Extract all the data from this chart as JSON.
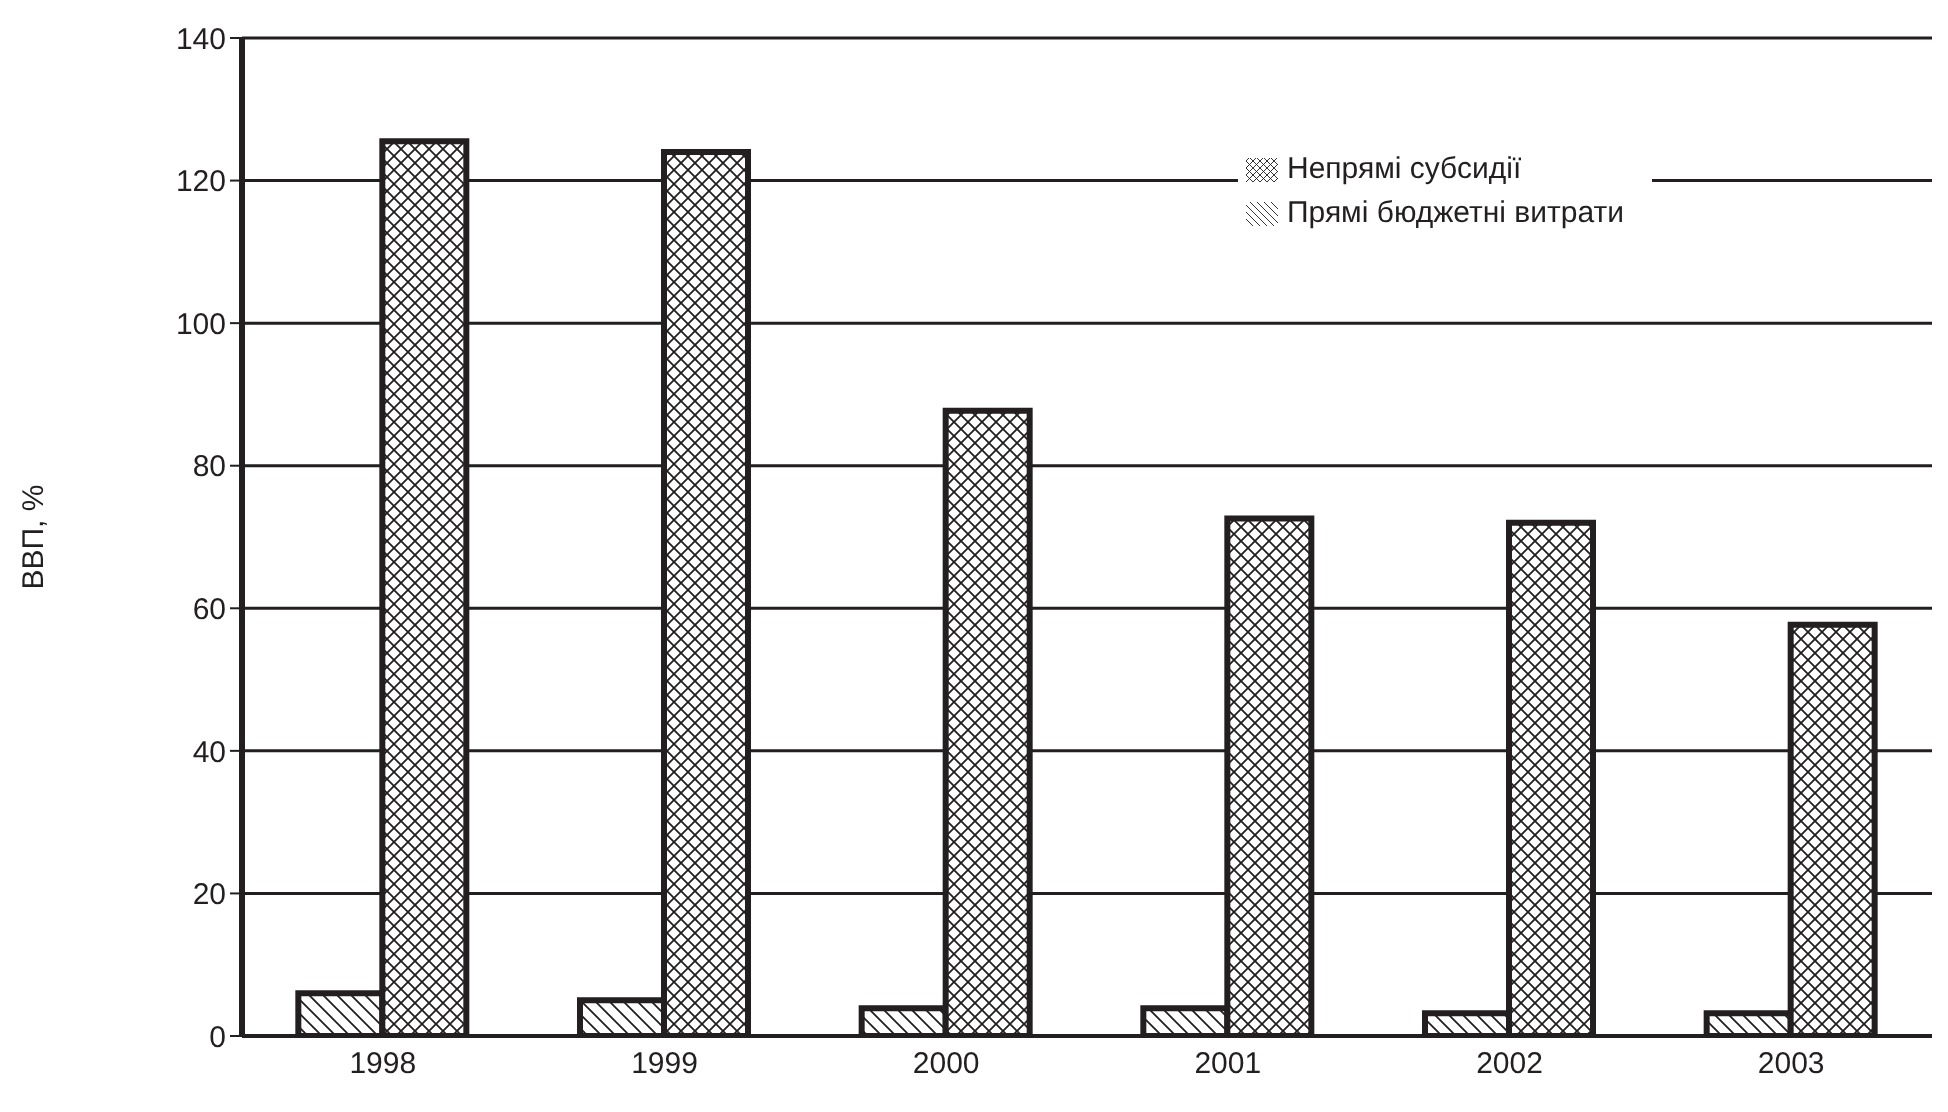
{
  "chart_data": {
    "type": "bar",
    "ylabel": "ВВП, %",
    "categories": [
      "1998",
      "1999",
      "2000",
      "2001",
      "2002",
      "2003"
    ],
    "series": [
      {
        "name": "Прямі бюджетні витрати",
        "color": "#231f20",
        "values": [
          6,
          5,
          3.9,
          3.9,
          3.2,
          3.2
        ]
      },
      {
        "name": "Непрямі субсидії",
        "color": "#231f20",
        "values": [
          125.5,
          124,
          87.7,
          72.6,
          72,
          57.7
        ]
      }
    ],
    "ylim": [
      0,
      140
    ],
    "yticks": [
      0,
      20,
      40,
      60,
      80,
      100,
      120,
      140
    ],
    "grid": "y",
    "legend": "top right"
  }
}
